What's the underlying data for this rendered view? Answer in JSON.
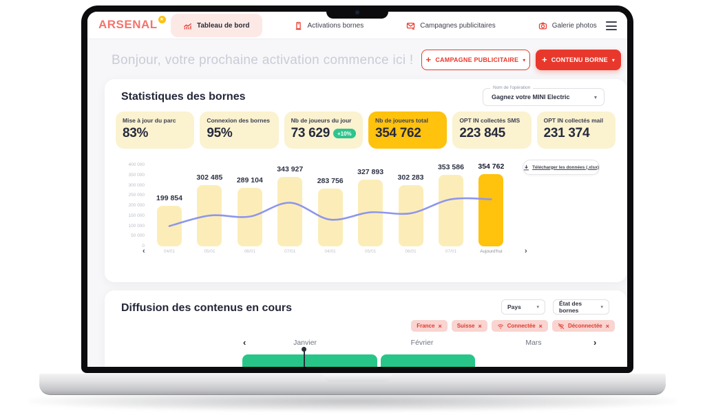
{
  "brand": {
    "name": "ARSENAL"
  },
  "nav": {
    "tabs": [
      {
        "id": "dashboard",
        "label": "Tableau de bord",
        "icon": "bar-chart-icon",
        "active": true
      },
      {
        "id": "activations",
        "label": "Activations bornes",
        "icon": "kiosk-icon",
        "active": false
      },
      {
        "id": "campaigns",
        "label": "Campagnes publicitaires",
        "icon": "mail-icon",
        "active": false
      },
      {
        "id": "gallery",
        "label": "Galerie photos",
        "icon": "camera-icon",
        "active": false
      }
    ]
  },
  "header": {
    "greeting": "Bonjour, votre prochaine activation commence ici !",
    "buttons": [
      {
        "id": "campagne-publicitaire",
        "label": "CAMPAGNE PUBLICITAIRE",
        "style": "outline"
      },
      {
        "id": "contenu-borne",
        "label": "CONTENU BORNE",
        "style": "filled"
      }
    ]
  },
  "stats": {
    "title": "Statistiques des bornes",
    "operation_select": {
      "label": "Nom de l'opération",
      "value": "Gagnez votre MINI Electric"
    },
    "cards": [
      {
        "label": "Mise à jour du parc",
        "value": "83%"
      },
      {
        "label": "Connexion des bornes",
        "value": "95%"
      },
      {
        "label": "Nb de joueurs du jour",
        "value": "73 629",
        "badge": "+10%"
      },
      {
        "label": "Nb de joueurs total",
        "value": "354 762",
        "highlight": true
      },
      {
        "label": "OPT IN collectés SMS",
        "value": "223 845"
      },
      {
        "label": "OPT IN collectés mail",
        "value": "231 374"
      }
    ],
    "download_label": "Télécharger les données (.xlsx)"
  },
  "chart_data": {
    "type": "bar",
    "categories": [
      "04/01",
      "05/01",
      "06/01",
      "07/01",
      "04/01",
      "05/01",
      "06/01",
      "07/01",
      "Aujourd'hui"
    ],
    "values": [
      199854,
      302485,
      289104,
      343927,
      283756,
      327893,
      302283,
      353586,
      354762
    ],
    "bar_labels": [
      "199 854",
      "302 485",
      "289 104",
      "343 927",
      "283 756",
      "327 893",
      "302 283",
      "353 586",
      "354 762"
    ],
    "line_series": {
      "name": "tendance",
      "values": [
        100000,
        152000,
        147000,
        215000,
        132000,
        168000,
        163000,
        232000,
        232000
      ]
    },
    "y_ticks": [
      "400 000",
      "350 000",
      "300 000",
      "250 000",
      "200 000",
      "150 000",
      "100 000",
      "50 000",
      "0"
    ],
    "ylim": [
      0,
      400000
    ],
    "highlight_index": 8,
    "grid": false,
    "colors": {
      "bar": "#FCEDB8",
      "bar_highlight": "#FFC20D",
      "line": "#8D96EC"
    }
  },
  "diffusion": {
    "title": "Diffusion des contenus en cours",
    "filters": [
      {
        "label": "Pays"
      },
      {
        "label": "État des bornes"
      }
    ],
    "chips": [
      {
        "label": "France"
      },
      {
        "label": "Suisse"
      },
      {
        "label": "Connectée",
        "icon": "wifi-icon"
      },
      {
        "label": "Déconnectée",
        "icon": "wifi-off-icon"
      }
    ],
    "months": [
      "Janvier",
      "Février",
      "Mars"
    ],
    "timeline_color": "#27C688"
  },
  "colors": {
    "accent_red": "#E8382C",
    "logo_red": "#F4736C",
    "pale_yellow": "#FBF2CF",
    "gold": "#FFC20D",
    "badge_green": "#2EC48E",
    "chip_bg": "#F9D4D0",
    "chip_text": "#DD3A2E"
  }
}
